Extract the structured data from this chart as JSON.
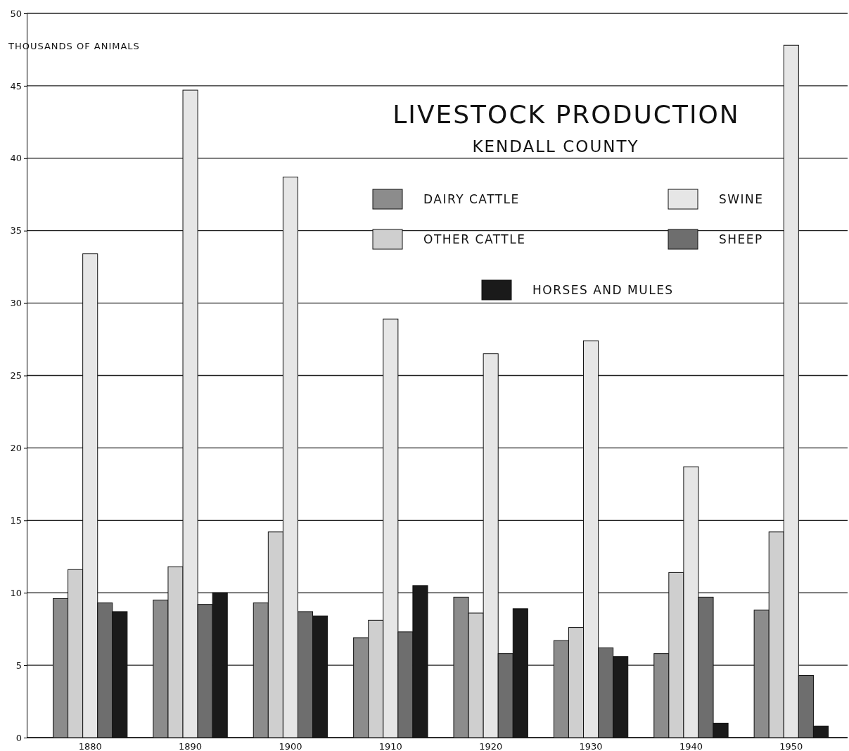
{
  "chart_data": {
    "type": "bar",
    "title": "LIVESTOCK PRODUCTION",
    "subtitle": "KENDALL COUNTY",
    "ylabel": "THOUSANDS OF ANIMALS",
    "categories": [
      "1880",
      "1890",
      "1900",
      "1910",
      "1920",
      "1930",
      "1940",
      "1950"
    ],
    "series": [
      {
        "name": "DAIRY CATTLE",
        "color": "#8c8c8c",
        "values": [
          9.6,
          9.5,
          9.3,
          6.9,
          9.7,
          6.7,
          5.8,
          8.8
        ]
      },
      {
        "name": "OTHER CATTLE",
        "color": "#cfcfcf",
        "values": [
          11.6,
          11.8,
          14.2,
          8.1,
          8.6,
          7.6,
          11.4,
          14.2
        ]
      },
      {
        "name": "SWINE",
        "color": "#e6e6e6",
        "values": [
          33.4,
          44.7,
          38.7,
          28.9,
          26.5,
          27.4,
          18.7,
          47.8
        ]
      },
      {
        "name": "SHEEP",
        "color": "#6e6e6e",
        "values": [
          9.3,
          9.2,
          8.7,
          7.3,
          5.8,
          6.2,
          9.7,
          4.3
        ]
      },
      {
        "name": "HORSES AND MULES",
        "color": "#1a1a1a",
        "values": [
          8.7,
          10.0,
          8.4,
          10.5,
          8.9,
          5.6,
          1.0,
          0.8
        ]
      }
    ],
    "ylim": [
      0,
      50
    ],
    "yticks": [
      0,
      5,
      10,
      15,
      20,
      25,
      30,
      35,
      40,
      45,
      50
    ],
    "grid": "y",
    "legend": "top right"
  }
}
